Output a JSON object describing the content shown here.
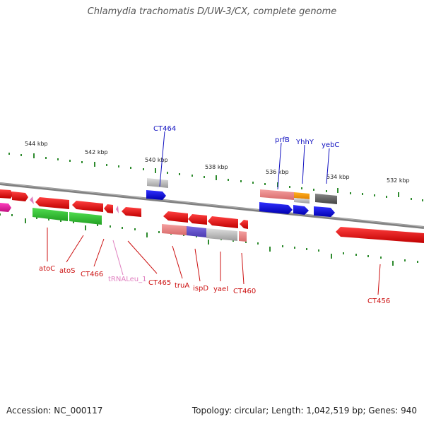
{
  "title": "Chlamydia trachomatis D/UW-3/CX, complete genome",
  "footer": {
    "accession": "Accession: NC_000117",
    "summary": "Topology: circular; Length: 1,042,519 bp; Genes: 940"
  },
  "scale_labels": [
    "544 kbp",
    "542 kbp",
    "540 kbp",
    "538 kbp",
    "536 kbp",
    "534 kbp",
    "532 kbp"
  ],
  "gene_labels_top": [
    "CT464",
    "prfB",
    "YhhY",
    "yebC"
  ],
  "gene_labels_bottom": [
    "atoC",
    "atoS",
    "CT466",
    "tRNALeu_1",
    "CT465",
    "truA",
    "ispD",
    "yaeI",
    "CT460",
    "CT456"
  ],
  "colors": {
    "backbone": "#808080",
    "tick": "#2e8b2e",
    "gene_forward": "#e01010",
    "gene_reverse": "#1010e0",
    "label_blue": "#1010c0",
    "label_red": "#cc1010",
    "label_trna": "#e080c0"
  }
}
